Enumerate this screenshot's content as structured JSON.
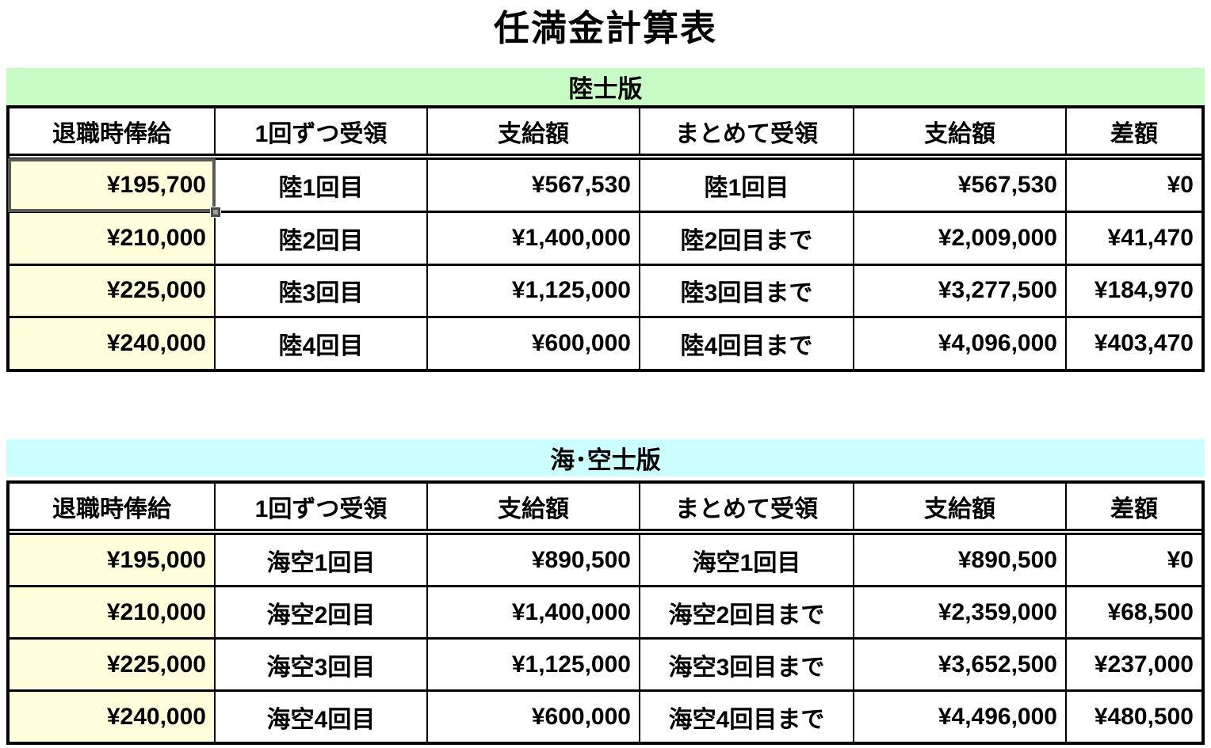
{
  "title": "任満金計算表",
  "colors": {
    "band_green": "#c9fcc5",
    "band_cyan": "#ccffff",
    "salary_cell_yellow": "#ffffdb",
    "grid_border": "#000000",
    "selection_border_gray": "#595959"
  },
  "selection": {
    "table_index": 0,
    "row_index": 0,
    "col_index": 0,
    "value": "¥195,700"
  },
  "tables": [
    {
      "band_label": "陸士版",
      "headers": [
        "退職時俸給",
        "1回ずつ受領",
        "支給額",
        "まとめて受領",
        "支給額",
        "差額"
      ],
      "rows": [
        [
          "¥195,700",
          "陸1回目",
          "¥567,530",
          "陸1回目",
          "¥567,530",
          "¥0"
        ],
        [
          "¥210,000",
          "陸2回目",
          "¥1,400,000",
          "陸2回目まで",
          "¥2,009,000",
          "¥41,470"
        ],
        [
          "¥225,000",
          "陸3回目",
          "¥1,125,000",
          "陸3回目まで",
          "¥3,277,500",
          "¥184,970"
        ],
        [
          "¥240,000",
          "陸4回目",
          "¥600,000",
          "陸4回目まで",
          "¥4,096,000",
          "¥403,470"
        ]
      ]
    },
    {
      "band_label": "海･空士版",
      "headers": [
        "退職時俸給",
        "1回ずつ受領",
        "支給額",
        "まとめて受領",
        "支給額",
        "差額"
      ],
      "rows": [
        [
          "¥195,000",
          "海空1回目",
          "¥890,500",
          "海空1回目",
          "¥890,500",
          "¥0"
        ],
        [
          "¥210,000",
          "海空2回目",
          "¥1,400,000",
          "海空2回目まで",
          "¥2,359,000",
          "¥68,500"
        ],
        [
          "¥225,000",
          "海空3回目",
          "¥1,125,000",
          "海空3回目まで",
          "¥3,652,500",
          "¥237,000"
        ],
        [
          "¥240,000",
          "海空4回目",
          "¥600,000",
          "海空4回目まで",
          "¥4,496,000",
          "¥480,500"
        ]
      ]
    }
  ]
}
